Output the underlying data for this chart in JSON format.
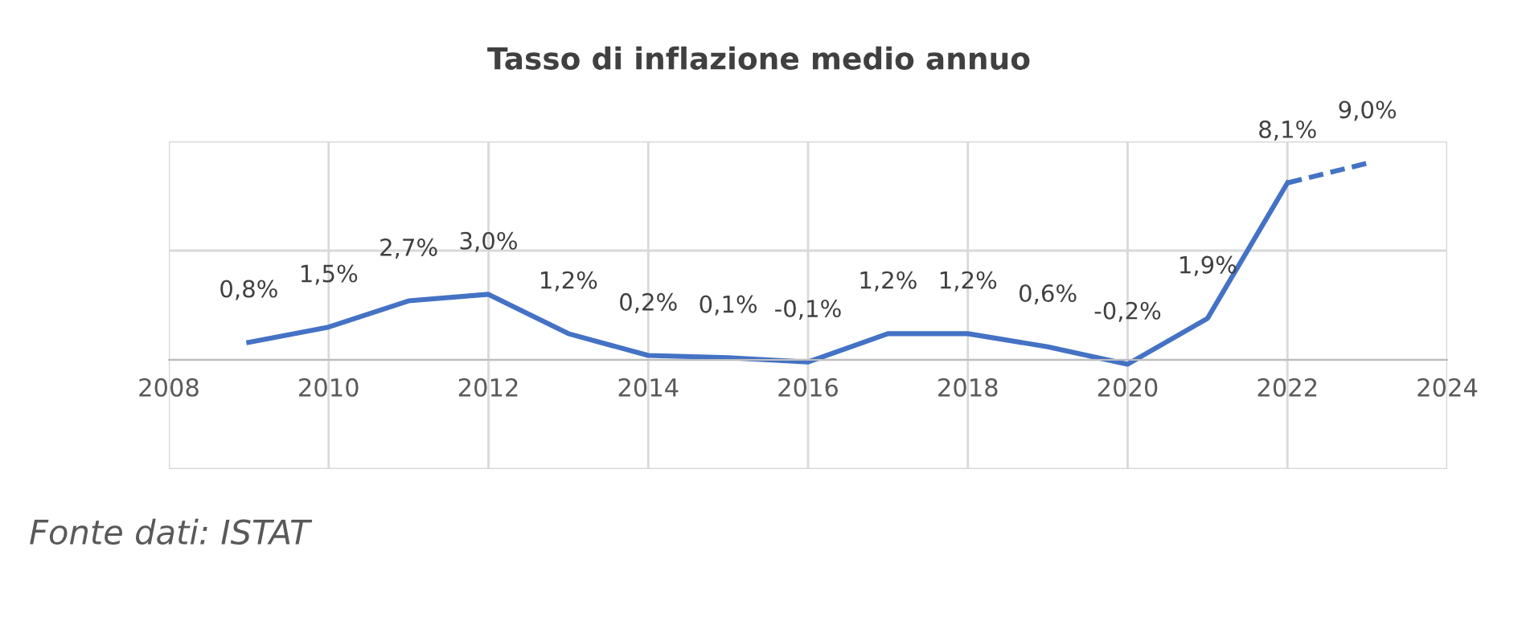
{
  "chart_data": {
    "type": "line",
    "title": "Tasso di inflazione medio annuo",
    "series": [
      {
        "color": "#4472c4",
        "x": [
          2009,
          2010,
          2011,
          2012,
          2013,
          2014,
          2015,
          2016,
          2017,
          2018,
          2019,
          2020,
          2021,
          2022
        ],
        "values": [
          0.8,
          1.5,
          2.7,
          3.0,
          1.2,
          0.2,
          0.1,
          -0.1,
          1.2,
          1.2,
          0.6,
          -0.2,
          1.9,
          8.1
        ],
        "value_labels": [
          "0,8%",
          "1,5%",
          "2,7%",
          "3,0%",
          "1,2%",
          "0,2%",
          "0,1%",
          "-0,1%",
          "1,2%",
          "1,2%",
          "0,6%",
          "-0,2%",
          "1,9%",
          "8,1%"
        ],
        "line_style": "solid"
      },
      {
        "color": "#4472c4",
        "x": [
          2022,
          2023
        ],
        "values": [
          8.1,
          9.0
        ],
        "value_labels": [
          null,
          "9,0%"
        ],
        "line_style": "dashed"
      }
    ],
    "xlim": [
      2008,
      2024
    ],
    "xticks": [
      2008,
      2010,
      2012,
      2014,
      2016,
      2018,
      2020,
      2022,
      2024
    ],
    "ylim": [
      -5,
      10
    ],
    "yticks": [
      {
        "value": -5,
        "label": null
      },
      {
        "value": 0,
        "label": null
      },
      {
        "value": 5,
        "label": null
      },
      {
        "value": 10,
        "label": null
      }
    ],
    "tick_labels": "x",
    "grid": true,
    "marker": "none",
    "annotations": [
      "Fonte dati: ISTAT"
    ]
  }
}
